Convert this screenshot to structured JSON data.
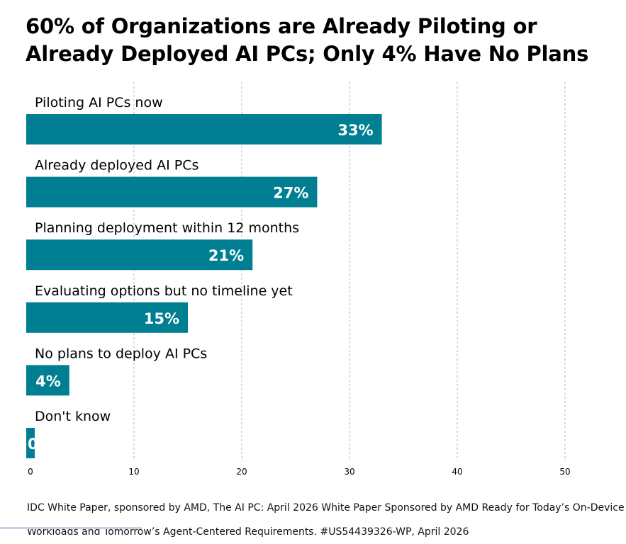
{
  "title": "60% of Organizations are Already Piloting or Already Deployed AI PCs; Only 4% Have No Plans",
  "source": "IDC White Paper, sponsored by AMD, The AI PC: April 2026 White Paper Sponsored by AMD Ready for Today’s On-Device Workloads and Tomorrow’s Agent-Centered Requirements. #US54439326-WP, April 2026",
  "colors": {
    "bar": "#007f93",
    "grid": "#b5b5b5",
    "label": "#000000",
    "value_label": "#ffffff"
  },
  "chart_data": {
    "type": "bar",
    "orientation": "horizontal",
    "title": "60% of Organizations are Already Piloting or Already Deployed AI PCs; Only 4% Have No Plans",
    "categories": [
      "Piloting AI PCs now",
      "Already deployed AI PCs",
      "Planning deployment within 12 months",
      "Evaluating options but no timeline yet",
      "No plans to deploy AI PCs",
      "Don't know"
    ],
    "values": [
      33,
      27,
      21,
      15,
      4,
      0
    ],
    "value_labels": [
      "33%",
      "27%",
      "21%",
      "15%",
      "4%",
      "0"
    ],
    "xlim": [
      0,
      50
    ],
    "xticks": [
      0,
      10,
      20,
      30,
      40,
      50
    ],
    "xtick_labels": [
      "0",
      "10",
      "20",
      "30",
      "40",
      "50"
    ],
    "grid": "vertical dashed",
    "legend": "none"
  }
}
